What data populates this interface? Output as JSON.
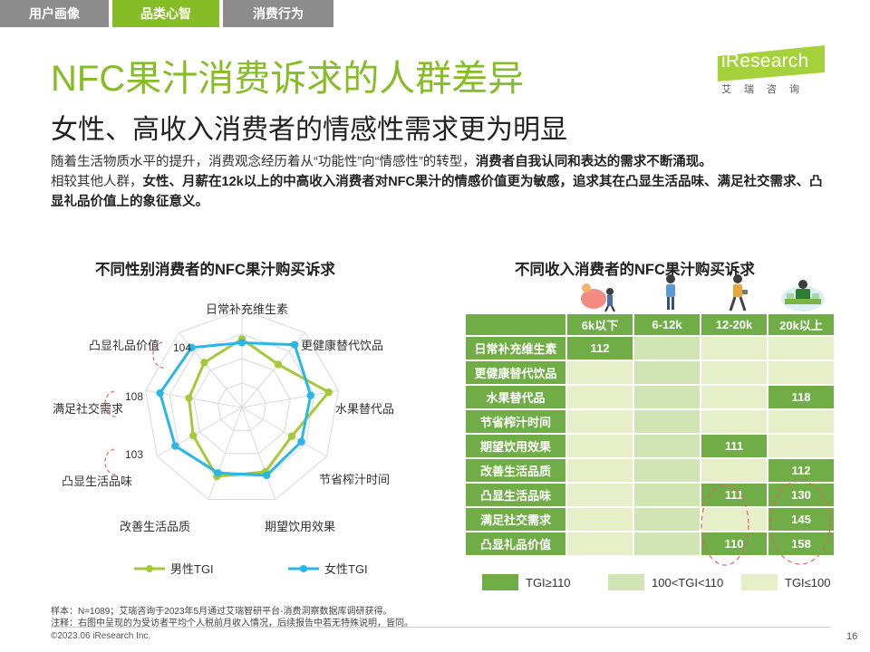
{
  "tabs": [
    {
      "label": "用户画像",
      "active": false
    },
    {
      "label": "品类心智",
      "active": true
    },
    {
      "label": "消费行为",
      "active": false
    }
  ],
  "logo": {
    "name": "iResearch",
    "sub": "艾瑞咨询"
  },
  "title": "NFC果汁消费诉求的人群差异",
  "subtitle": "女性、高收入消费者的情感性需求更为明显",
  "body": {
    "p1_a": "随着生活物质水平的提升，消费观念经历着从“功能性”向“情感性”的转型，",
    "p1_b": "消费者自我认同和表达的需求不断涌现。",
    "p2_a": "相较其他人群，",
    "p2_b": "女性、月薪在12k以上的中高收入消费者对NFC果汁的情感价值更为敏感，",
    "p2_c": "追求其在凸显生活品味、满足社交需求、凸显礼品价值上的象征意义。"
  },
  "colors": {
    "accent": "#86bc25",
    "tab_inactive": "#8c8c8c",
    "male": "#a5c93a",
    "female": "#29b6e8",
    "high": "#70ad47",
    "mid": "#d0e4b4",
    "low": "#e6efc8",
    "circle": "#e06666"
  },
  "chart_data": [
    {
      "type": "radar",
      "title": "不同性别消费者的NFC果汁购买诉求",
      "axes": [
        "日常补充维生素",
        "更健康替代饮品",
        "水果替代品",
        "节省榨汁时间",
        "期望饮用效果",
        "改善生活品质",
        "凸显生活品味",
        "满足社交需求",
        "凸显礼品价值"
      ],
      "series": [
        {
          "name": "男性TGI",
          "values": [
            96,
            86,
            112,
            87,
            96,
            100,
            86,
            84,
            88
          ]
        },
        {
          "name": "女性TGI",
          "values": [
            93,
            107,
            97,
            96,
            99,
            97,
            103,
            108,
            104
          ]
        }
      ],
      "annotations": [
        {
          "axis": "凸显礼品价值",
          "label": "104"
        },
        {
          "axis": "满足社交需求",
          "label": "108"
        },
        {
          "axis": "凸显生活品味",
          "label": "103"
        }
      ],
      "scale": [
        40,
        120
      ],
      "legend": "bottom"
    },
    {
      "type": "table",
      "title": "不同收入消费者的NFC果汁购买诉求",
      "columns": [
        "6k以下",
        "6-12k",
        "12-20k",
        "20k以上"
      ],
      "rows": [
        {
          "label": "日常补充维生素",
          "cells": [
            {
              "v": "112",
              "lv": "high"
            },
            {
              "v": "",
              "lv": "mid"
            },
            {
              "v": "",
              "lv": "low"
            },
            {
              "v": "",
              "lv": "low"
            }
          ]
        },
        {
          "label": "更健康替代饮品",
          "cells": [
            {
              "v": "",
              "lv": "low"
            },
            {
              "v": "",
              "lv": "mid"
            },
            {
              "v": "",
              "lv": "low"
            },
            {
              "v": "",
              "lv": "low"
            }
          ]
        },
        {
          "label": "水果替代品",
          "cells": [
            {
              "v": "",
              "lv": "low"
            },
            {
              "v": "",
              "lv": "mid"
            },
            {
              "v": "",
              "lv": "low"
            },
            {
              "v": "118",
              "lv": "high"
            }
          ]
        },
        {
          "label": "节省榨汁时间",
          "cells": [
            {
              "v": "",
              "lv": "low"
            },
            {
              "v": "",
              "lv": "mid"
            },
            {
              "v": "",
              "lv": "low"
            },
            {
              "v": "",
              "lv": "low"
            }
          ]
        },
        {
          "label": "期望饮用效果",
          "cells": [
            {
              "v": "",
              "lv": "low"
            },
            {
              "v": "",
              "lv": "mid"
            },
            {
              "v": "111",
              "lv": "high"
            },
            {
              "v": "",
              "lv": "low"
            }
          ]
        },
        {
          "label": "改善生活品质",
          "cells": [
            {
              "v": "",
              "lv": "low"
            },
            {
              "v": "",
              "lv": "mid"
            },
            {
              "v": "",
              "lv": "low"
            },
            {
              "v": "112",
              "lv": "high"
            }
          ]
        },
        {
          "label": "凸显生活品味",
          "cells": [
            {
              "v": "",
              "lv": "low"
            },
            {
              "v": "",
              "lv": "mid"
            },
            {
              "v": "111",
              "lv": "high"
            },
            {
              "v": "130",
              "lv": "high"
            }
          ]
        },
        {
          "label": "满足社交需求",
          "cells": [
            {
              "v": "",
              "lv": "low"
            },
            {
              "v": "",
              "lv": "mid"
            },
            {
              "v": "",
              "lv": "low"
            },
            {
              "v": "145",
              "lv": "high"
            }
          ]
        },
        {
          "label": "凸显礼品价值",
          "cells": [
            {
              "v": "",
              "lv": "low"
            },
            {
              "v": "",
              "lv": "mid"
            },
            {
              "v": "110",
              "lv": "high"
            },
            {
              "v": "158",
              "lv": "high"
            }
          ]
        }
      ],
      "legend": [
        {
          "label": "TGI≥110",
          "lv": "high"
        },
        {
          "label": "100<TGI<110",
          "lv": "mid"
        },
        {
          "label": "TGI≤100",
          "lv": "low"
        }
      ],
      "legend_placement": "bottom"
    }
  ],
  "footer": {
    "sample": "样本：N=1089；艾瑞咨询于2023年5月通过艾瑞智研平台-消费洞察数据库调研获得。",
    "note": "注释：右图中呈现的为受访者平均个人税前月收入情况，后续报告中若无特殊说明，皆同。",
    "copyright": "©2023.06 iResearch Inc.",
    "page": "16"
  }
}
